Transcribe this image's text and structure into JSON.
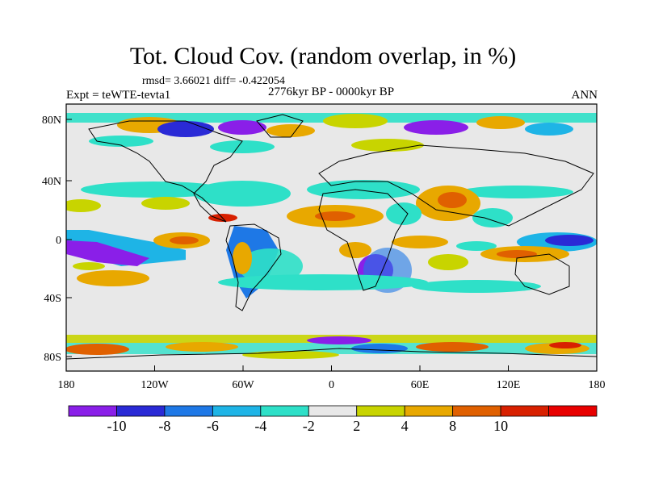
{
  "figure": {
    "title": "Tot. Cloud Cov. (random overlap, in %)",
    "stats_line": "rmsd= 3.66021 diff= -0.422054",
    "period": "2776kyr BP - 0000kyr BP",
    "experiment": "Expt = teWTE-tevta1",
    "season": "ANN"
  },
  "axes": {
    "lat_labels": [
      "80N",
      "40N",
      "0",
      "40S",
      "80S"
    ],
    "lon_labels": [
      "180",
      "120W",
      "60W",
      "0",
      "60E",
      "120E",
      "180"
    ]
  },
  "colorbar": {
    "labels": [
      "-10",
      "-8",
      "-6",
      "-4",
      "-2",
      "2",
      "4",
      "8",
      "10"
    ],
    "colors": [
      "#8a1fe8",
      "#2a2ad6",
      "#1e78e6",
      "#1eb4e6",
      "#2ee0c8",
      "#e8e8e8",
      "#c8d400",
      "#e8a800",
      "#e06000",
      "#d82000",
      "#e80000"
    ]
  }
}
